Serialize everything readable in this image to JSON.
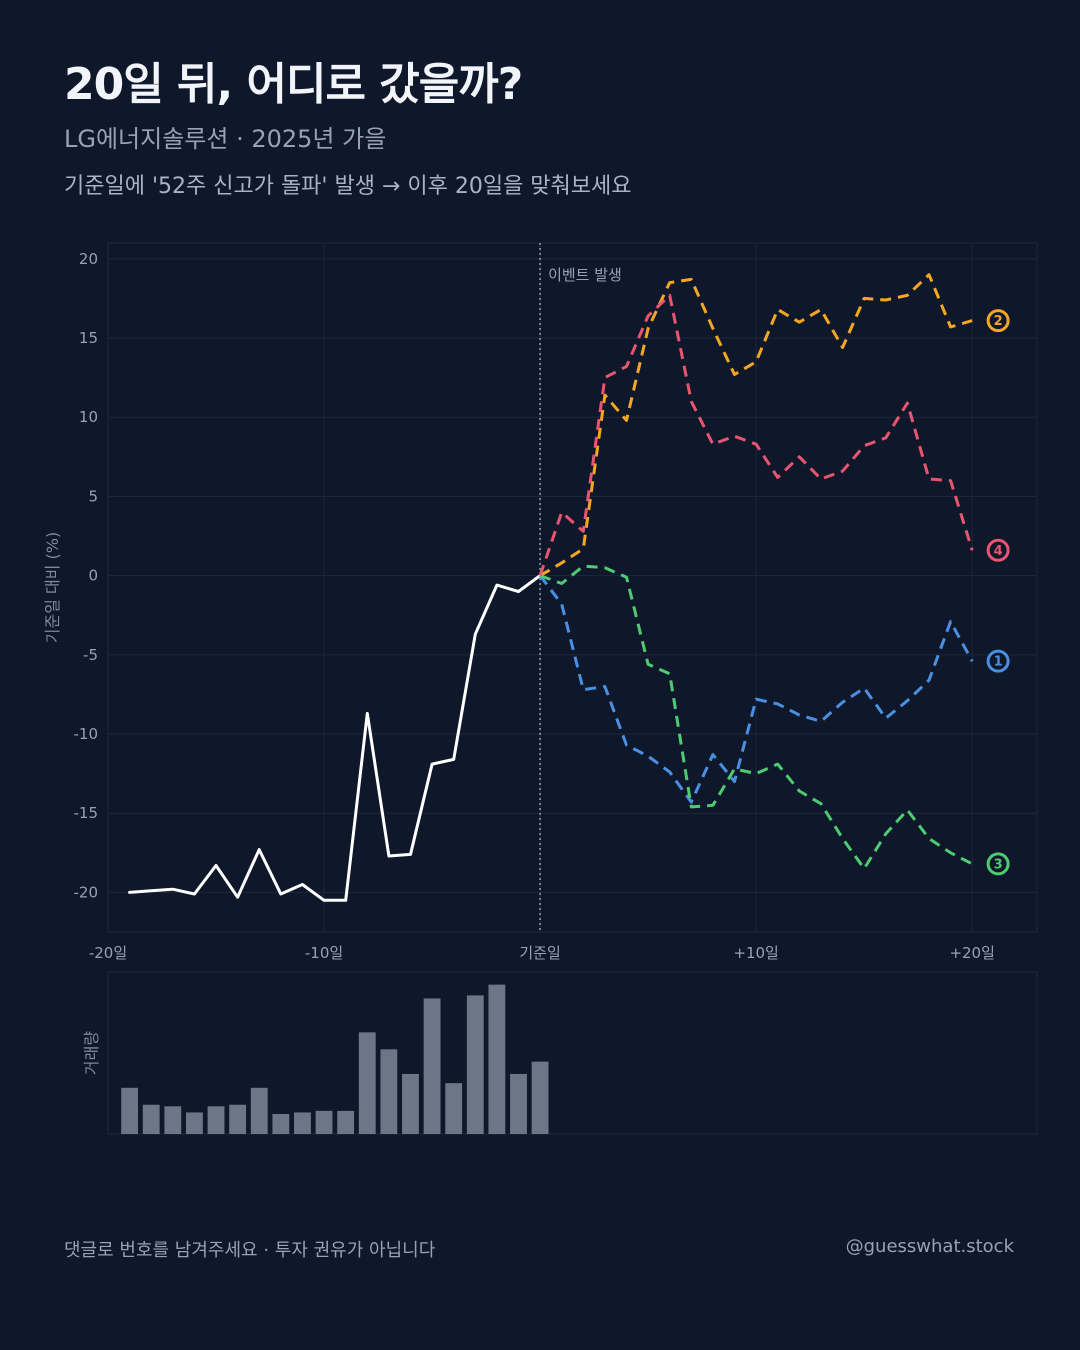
{
  "header": {
    "title": "20일 뒤, 어디로 갔을까?",
    "subtitle": "LG에너지솔루션 · 2025년 가을",
    "description": "기준일에 '52주 신고가 돌파' 발생 → 이후 20일을 맞춰보세요"
  },
  "footer": {
    "note": "댓글로 번호를 남겨주세요 · 투자 권유가 아닙니다",
    "handle": "@guesswhat.stock"
  },
  "colors": {
    "background": "#0f172a",
    "history": "#ffffff",
    "volume": "#6b7686",
    "grid": "#1e293b",
    "event_line": "#94a3b8"
  },
  "chart_data": [
    {
      "type": "line",
      "ylabel": "기준일 대비 (%)",
      "xlim": [
        -20,
        23
      ],
      "ylim": [
        -22.5,
        21
      ],
      "x_ticks": [
        -20,
        -10,
        0,
        10,
        20
      ],
      "x_tick_labels": [
        "-20일",
        "-10일",
        "기준일",
        "+10일",
        "+20일"
      ],
      "y_ticks": [
        -20,
        -15,
        -10,
        -5,
        0,
        5,
        10,
        15,
        20
      ],
      "y_tick_labels": [
        "-20",
        "-15",
        "-10",
        "-5",
        "0",
        "5",
        "10",
        "15",
        "20"
      ],
      "grid": true,
      "event": {
        "x": 0,
        "label": "이벤트 발생"
      },
      "history": {
        "x": [
          -19,
          -18,
          -17,
          -16,
          -15,
          -14,
          -13,
          -12,
          -11,
          -10,
          -9,
          -8,
          -7,
          -6,
          -5,
          -4,
          -3,
          -2,
          -1,
          0
        ],
        "values": [
          -20.0,
          -19.9,
          -19.8,
          -20.1,
          -18.3,
          -20.3,
          -17.3,
          -20.1,
          -19.5,
          -20.5,
          -20.5,
          -8.7,
          -17.7,
          -17.6,
          -11.9,
          -11.6,
          -3.7,
          -0.6,
          -1.0,
          0.0
        ]
      },
      "series": [
        {
          "label": "1",
          "color": "#4a90e2",
          "values": [
            0.0,
            -1.8,
            -7.2,
            -7.0,
            -10.7,
            -11.4,
            -12.4,
            -14.3,
            -11.3,
            -13.0,
            -7.8,
            -8.1,
            -8.8,
            -9.2,
            -8.0,
            -7.1,
            -9.0,
            -7.9,
            -6.6,
            -2.9,
            -5.4
          ]
        },
        {
          "label": "2",
          "color": "#f5a623",
          "values": [
            0.0,
            0.8,
            1.7,
            11.4,
            9.8,
            15.6,
            18.5,
            18.7,
            15.6,
            12.7,
            13.5,
            16.8,
            16.0,
            16.8,
            14.4,
            17.5,
            17.4,
            17.7,
            19.0,
            15.7,
            16.1
          ]
        },
        {
          "label": "3",
          "color": "#4ecb71",
          "values": [
            0.0,
            -0.5,
            0.6,
            0.5,
            -0.1,
            -5.6,
            -6.2,
            -14.6,
            -14.5,
            -12.2,
            -12.5,
            -11.9,
            -13.6,
            -14.4,
            -16.6,
            -18.5,
            -16.3,
            -14.8,
            -16.6,
            -17.5,
            -18.2
          ]
        },
        {
          "label": "4",
          "color": "#e8556f",
          "values": [
            0.0,
            4.0,
            2.8,
            12.5,
            13.2,
            16.4,
            17.7,
            11.0,
            8.3,
            8.8,
            8.3,
            6.2,
            7.5,
            6.1,
            6.6,
            8.2,
            8.7,
            10.9,
            6.1,
            6.0,
            1.6
          ]
        }
      ]
    },
    {
      "type": "bar",
      "ylabel": "거래량",
      "x": [
        -19,
        -18,
        -17,
        -16,
        -15,
        -14,
        -13,
        -12,
        -11,
        -10,
        -9,
        -8,
        -7,
        -6,
        -5,
        -4,
        -3,
        -2,
        -1,
        0
      ],
      "values": [
        30,
        19,
        18,
        14,
        18,
        19,
        30,
        13,
        14,
        15,
        15,
        66,
        55,
        39,
        88,
        33,
        90,
        97,
        39,
        47
      ],
      "ylim": [
        0,
        100
      ]
    }
  ]
}
